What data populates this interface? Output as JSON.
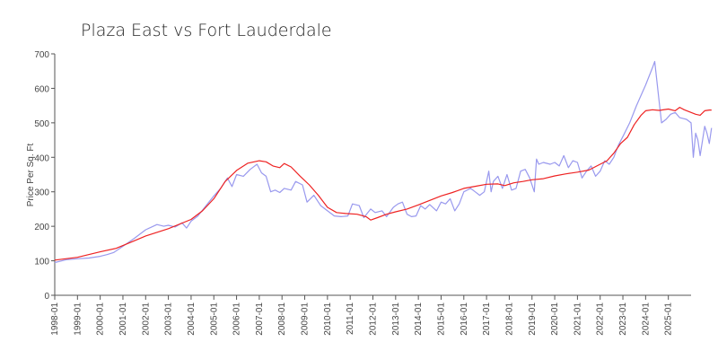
{
  "chart_data": {
    "type": "line",
    "title": "Plaza East vs Fort Lauderdale",
    "xlabel": "",
    "ylabel": "Price Per Sq. Ft",
    "ylim": [
      0,
      700
    ],
    "xlim": [
      1998.0,
      2026.0
    ],
    "yticks": [
      0,
      100,
      200,
      300,
      400,
      500,
      600,
      700
    ],
    "xtick_labels": [
      "1998-01",
      "1999-01",
      "2000-01",
      "2001-01",
      "2002-01",
      "2003-01",
      "2004-01",
      "2005-01",
      "2006-01",
      "2007-01",
      "2008-01",
      "2009-01",
      "2010-01",
      "2011-01",
      "2012-01",
      "2013-01",
      "2014-01",
      "2015-01",
      "2016-01",
      "2017-01",
      "2018-01",
      "2019-01",
      "2020-01",
      "2021-01",
      "2022-01",
      "2023-01",
      "2024-01",
      "2025-01"
    ],
    "grid": false,
    "series": [
      {
        "name": "Plaza East",
        "color": "#9999ee",
        "points": [
          [
            1998.0,
            95
          ],
          [
            1998.5,
            103
          ],
          [
            1999.0,
            106
          ],
          [
            1999.5,
            108
          ],
          [
            2000.0,
            113
          ],
          [
            2000.3,
            118
          ],
          [
            2000.6,
            124
          ],
          [
            2001.0,
            142
          ],
          [
            2001.5,
            165
          ],
          [
            2002.0,
            190
          ],
          [
            2002.5,
            205
          ],
          [
            2002.8,
            200
          ],
          [
            2003.0,
            203
          ],
          [
            2003.3,
            198
          ],
          [
            2003.6,
            210
          ],
          [
            2003.8,
            195
          ],
          [
            2004.0,
            215
          ],
          [
            2004.3,
            230
          ],
          [
            2004.6,
            255
          ],
          [
            2005.0,
            288
          ],
          [
            2005.3,
            310
          ],
          [
            2005.6,
            340
          ],
          [
            2005.8,
            315
          ],
          [
            2006.0,
            350
          ],
          [
            2006.3,
            345
          ],
          [
            2006.6,
            365
          ],
          [
            2006.9,
            380
          ],
          [
            2007.1,
            355
          ],
          [
            2007.3,
            345
          ],
          [
            2007.5,
            300
          ],
          [
            2007.7,
            305
          ],
          [
            2007.9,
            298
          ],
          [
            2008.1,
            310
          ],
          [
            2008.4,
            305
          ],
          [
            2008.6,
            330
          ],
          [
            2008.9,
            320
          ],
          [
            2009.1,
            270
          ],
          [
            2009.4,
            290
          ],
          [
            2009.7,
            260
          ],
          [
            2010.0,
            245
          ],
          [
            2010.3,
            230
          ],
          [
            2010.6,
            228
          ],
          [
            2010.9,
            230
          ],
          [
            2011.1,
            265
          ],
          [
            2011.4,
            260
          ],
          [
            2011.6,
            225
          ],
          [
            2011.9,
            250
          ],
          [
            2012.1,
            240
          ],
          [
            2012.4,
            245
          ],
          [
            2012.6,
            228
          ],
          [
            2012.9,
            255
          ],
          [
            2013.1,
            265
          ],
          [
            2013.3,
            270
          ],
          [
            2013.5,
            235
          ],
          [
            2013.7,
            228
          ],
          [
            2013.9,
            230
          ],
          [
            2014.1,
            260
          ],
          [
            2014.3,
            250
          ],
          [
            2014.5,
            263
          ],
          [
            2014.8,
            245
          ],
          [
            2015.0,
            270
          ],
          [
            2015.2,
            265
          ],
          [
            2015.4,
            280
          ],
          [
            2015.6,
            245
          ],
          [
            2015.8,
            265
          ],
          [
            2016.0,
            300
          ],
          [
            2016.3,
            310
          ],
          [
            2016.5,
            300
          ],
          [
            2016.7,
            290
          ],
          [
            2016.9,
            300
          ],
          [
            2017.1,
            360
          ],
          [
            2017.2,
            300
          ],
          [
            2017.3,
            330
          ],
          [
            2017.5,
            345
          ],
          [
            2017.7,
            310
          ],
          [
            2017.9,
            350
          ],
          [
            2018.1,
            305
          ],
          [
            2018.3,
            310
          ],
          [
            2018.5,
            360
          ],
          [
            2018.7,
            365
          ],
          [
            2018.9,
            340
          ],
          [
            2019.1,
            300
          ],
          [
            2019.2,
            395
          ],
          [
            2019.3,
            380
          ],
          [
            2019.5,
            385
          ],
          [
            2019.8,
            380
          ],
          [
            2020.0,
            385
          ],
          [
            2020.2,
            375
          ],
          [
            2020.4,
            405
          ],
          [
            2020.6,
            370
          ],
          [
            2020.8,
            390
          ],
          [
            2021.0,
            385
          ],
          [
            2021.2,
            340
          ],
          [
            2021.4,
            360
          ],
          [
            2021.6,
            375
          ],
          [
            2021.8,
            345
          ],
          [
            2022.0,
            360
          ],
          [
            2022.2,
            390
          ],
          [
            2022.4,
            380
          ],
          [
            2022.6,
            400
          ],
          [
            2022.8,
            435
          ],
          [
            2023.0,
            460
          ],
          [
            2023.3,
            500
          ],
          [
            2023.6,
            550
          ],
          [
            2024.0,
            610
          ],
          [
            2024.3,
            660
          ],
          [
            2024.4,
            678
          ],
          [
            2024.6,
            560
          ],
          [
            2024.7,
            500
          ],
          [
            2024.9,
            510
          ],
          [
            2025.1,
            525
          ],
          [
            2025.3,
            530
          ],
          [
            2025.5,
            515
          ],
          [
            2025.8,
            510
          ],
          [
            2026.0,
            500
          ],
          [
            2026.1,
            400
          ],
          [
            2026.2,
            470
          ],
          [
            2026.3,
            450
          ],
          [
            2026.4,
            405
          ],
          [
            2026.6,
            490
          ],
          [
            2026.7,
            470
          ],
          [
            2026.8,
            440
          ],
          [
            2026.9,
            485
          ]
        ]
      },
      {
        "name": "Fort Lauderdale",
        "color": "#ee2222",
        "points": [
          [
            1998.0,
            102
          ],
          [
            1999.0,
            110
          ],
          [
            2000.0,
            126
          ],
          [
            2000.7,
            136
          ],
          [
            2001.5,
            158
          ],
          [
            2002.0,
            172
          ],
          [
            2003.0,
            193
          ],
          [
            2004.0,
            220
          ],
          [
            2004.5,
            245
          ],
          [
            2005.0,
            280
          ],
          [
            2005.5,
            330
          ],
          [
            2006.0,
            362
          ],
          [
            2006.5,
            383
          ],
          [
            2007.0,
            390
          ],
          [
            2007.3,
            387
          ],
          [
            2007.6,
            375
          ],
          [
            2007.9,
            370
          ],
          [
            2008.1,
            382
          ],
          [
            2008.4,
            372
          ],
          [
            2008.8,
            345
          ],
          [
            2009.2,
            320
          ],
          [
            2009.6,
            290
          ],
          [
            2010.0,
            255
          ],
          [
            2010.4,
            240
          ],
          [
            2010.8,
            237
          ],
          [
            2011.3,
            235
          ],
          [
            2011.7,
            228
          ],
          [
            2011.9,
            218
          ],
          [
            2012.2,
            225
          ],
          [
            2012.6,
            235
          ],
          [
            2013.0,
            242
          ],
          [
            2013.5,
            250
          ],
          [
            2014.0,
            262
          ],
          [
            2014.5,
            275
          ],
          [
            2015.0,
            288
          ],
          [
            2015.5,
            298
          ],
          [
            2016.0,
            310
          ],
          [
            2016.5,
            316
          ],
          [
            2017.0,
            322
          ],
          [
            2017.5,
            323
          ],
          [
            2017.8,
            318
          ],
          [
            2018.2,
            326
          ],
          [
            2018.6,
            330
          ],
          [
            2019.0,
            335
          ],
          [
            2019.5,
            338
          ],
          [
            2020.0,
            346
          ],
          [
            2020.5,
            352
          ],
          [
            2021.0,
            357
          ],
          [
            2021.5,
            363
          ],
          [
            2022.0,
            380
          ],
          [
            2022.3,
            390
          ],
          [
            2022.6,
            412
          ],
          [
            2022.9,
            440
          ],
          [
            2023.2,
            458
          ],
          [
            2023.5,
            495
          ],
          [
            2023.8,
            522
          ],
          [
            2024.0,
            535
          ],
          [
            2024.3,
            538
          ],
          [
            2024.6,
            536
          ],
          [
            2025.0,
            540
          ],
          [
            2025.3,
            535
          ],
          [
            2025.5,
            545
          ],
          [
            2025.7,
            538
          ],
          [
            2026.0,
            530
          ],
          [
            2026.2,
            525
          ],
          [
            2026.4,
            522
          ],
          [
            2026.6,
            535
          ],
          [
            2026.8,
            537
          ],
          [
            2026.9,
            537
          ]
        ]
      }
    ]
  }
}
